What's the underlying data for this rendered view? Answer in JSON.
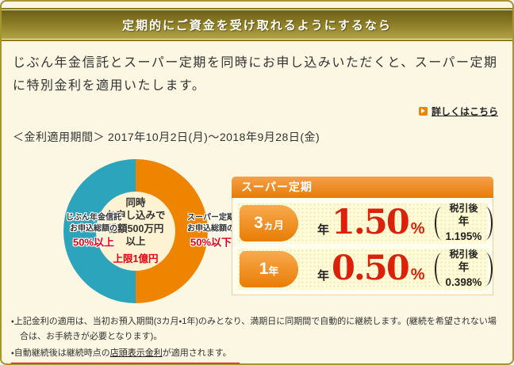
{
  "banner": {
    "title": "定期的にご資金を受け取れるようにするなら"
  },
  "intro": {
    "text": "じぶん年金信託とスーパー定期を同時にお申し込みいただくと、スーパー定期に特別金利を適用いたします。"
  },
  "more_link": {
    "label": "詳しくはこちら"
  },
  "period": {
    "label": "＜金利適用期間＞",
    "value": "2017年10月2日(月)～2018年9月28日(金)"
  },
  "chart_data": {
    "type": "pie",
    "title": "同時お申し込みで総額500万円以上（上限1億円）",
    "slices": [
      {
        "name": "じぶん年金信託",
        "label_line1": "じぶん年金信託",
        "label_line2": "お申込総額の",
        "highlight": "50%以上",
        "value": 50,
        "color": "#2ba4bc"
      },
      {
        "name": "スーパー定期",
        "label_line1": "スーパー定期",
        "label_line2": "お申込総額の",
        "highlight": "50%以下",
        "value": 50,
        "color": "#ef8400"
      }
    ],
    "center": {
      "lines": [
        "同時",
        "お申し込みで",
        "総額500万円",
        "以上"
      ],
      "note": "上限1億円"
    },
    "legend_position": "inside"
  },
  "rate_box": {
    "title": "スーパー定期",
    "rows": [
      {
        "term_num": "3",
        "term_unit": "ヵ月",
        "prefix": "年",
        "rate": "1.50",
        "percent": "%",
        "after_tax_label": "税引後",
        "after_tax_value": "年1.195%"
      },
      {
        "term_num": "1",
        "term_unit": "年",
        "prefix": "年",
        "rate": "0.50",
        "percent": "%",
        "after_tax_label": "税引後",
        "after_tax_value": "年0.398%"
      }
    ]
  },
  "notes": {
    "note1": "・上記金利の適用は、当初お預入期間(3カ月・1年)のみとなり、満期日に同期間で自動的に継続します。(継続を希望されない場合は、お手続きが必要となります)。",
    "note2_prefix": "・自動継続後は継続時点の",
    "note2_link": "店頭表示金利",
    "note2_suffix": "が適用されます。"
  },
  "colors": {
    "frame_gold": "#a6942f",
    "banner_gradient_top": "#6c5f16",
    "banner_gradient_bottom": "#b3a347",
    "background_cream": "#fbf7e2",
    "teal_slice": "#2ba4bc",
    "orange_slice": "#ef8400",
    "rate_orange": "#e67c05",
    "rate_red": "#da210a",
    "note_red_underline": "#e00000"
  }
}
